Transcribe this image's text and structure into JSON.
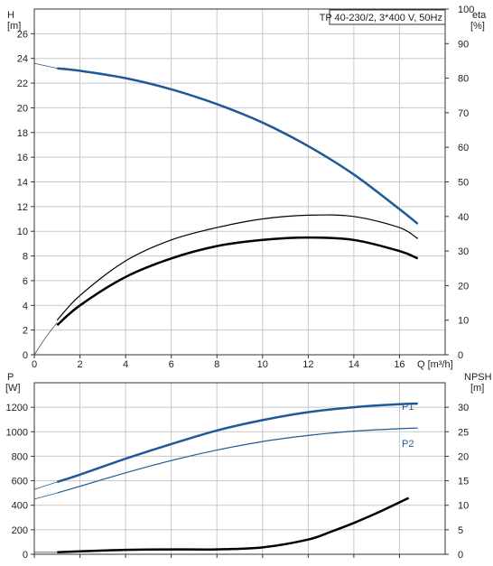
{
  "chart_data": [
    {
      "type": "line",
      "title": "TP 40-230/2, 3*400 V, 50Hz",
      "xlabel": "Q [m³/h]",
      "ylabel_left": "H",
      "ylabel_left_unit": "[m]",
      "ylabel_right": "eta",
      "ylabel_right_unit": "[%]",
      "xlim": [
        0,
        18
      ],
      "ylim_left": [
        0,
        28
      ],
      "ylim_right": [
        0,
        100
      ],
      "x_ticks": [
        0,
        2,
        4,
        6,
        8,
        10,
        12,
        14,
        16
      ],
      "y_ticks_left": [
        0,
        2,
        4,
        6,
        8,
        10,
        12,
        14,
        16,
        18,
        20,
        22,
        24,
        26
      ],
      "y_ticks_right": [
        0,
        10,
        20,
        30,
        40,
        50,
        60,
        70,
        80,
        90,
        100
      ],
      "grid": true,
      "series": [
        {
          "id": "head",
          "axis": "left",
          "color": "#1f5a96",
          "width": 2.5,
          "x": [
            1,
            2,
            4,
            6,
            8,
            10,
            12,
            14,
            16,
            16.8
          ],
          "y": [
            23.2,
            23.0,
            22.4,
            21.5,
            20.3,
            18.8,
            16.9,
            14.6,
            11.8,
            10.6
          ]
        },
        {
          "id": "head-extension",
          "axis": "left",
          "color": "#1f5a96",
          "width": 0.8,
          "x": [
            0,
            1
          ],
          "y": [
            23.6,
            23.2
          ]
        },
        {
          "id": "efficiency-thin",
          "axis": "left",
          "color": "#000000",
          "width": 1.2,
          "x": [
            1,
            2,
            4,
            6,
            8,
            10,
            12,
            14,
            16,
            16.8
          ],
          "y": [
            2.8,
            4.8,
            7.6,
            9.3,
            10.3,
            11.0,
            11.3,
            11.2,
            10.3,
            9.4
          ]
        },
        {
          "id": "efficiency-thick",
          "axis": "left",
          "color": "#000000",
          "width": 2.5,
          "x": [
            1,
            2,
            4,
            6,
            8,
            10,
            12,
            14,
            16,
            16.8
          ],
          "y": [
            2.4,
            4.0,
            6.3,
            7.8,
            8.8,
            9.3,
            9.5,
            9.3,
            8.4,
            7.8
          ]
        },
        {
          "id": "efficiency-extension",
          "axis": "left",
          "color": "#555555",
          "width": 0.8,
          "x": [
            0,
            0.5,
            1
          ],
          "y": [
            0,
            1.4,
            2.6
          ]
        }
      ]
    },
    {
      "type": "line",
      "ylabel_left": "P",
      "ylabel_left_unit": "[W]",
      "ylabel_right": "NPSH",
      "ylabel_right_unit": "[m]",
      "xlim": [
        0,
        18
      ],
      "ylim_left": [
        0,
        1400
      ],
      "ylim_right": [
        0,
        35
      ],
      "y_ticks_left": [
        0,
        200,
        400,
        600,
        800,
        1000,
        1200
      ],
      "y_ticks_right": [
        0,
        5,
        10,
        15,
        20,
        25,
        30
      ],
      "grid": true,
      "series": [
        {
          "id": "p1",
          "name": "P1",
          "axis": "left",
          "color": "#1f5a96",
          "width": 2.5,
          "x": [
            1,
            2,
            4,
            6,
            8,
            10,
            12,
            14,
            16,
            16.8
          ],
          "y": [
            590,
            650,
            780,
            900,
            1010,
            1095,
            1160,
            1200,
            1225,
            1230
          ]
        },
        {
          "id": "p1-extension",
          "axis": "left",
          "color": "#1f5a96",
          "width": 0.8,
          "x": [
            0,
            1
          ],
          "y": [
            530,
            590
          ]
        },
        {
          "id": "p2",
          "name": "P2",
          "axis": "left",
          "color": "#1f5a96",
          "width": 1.2,
          "x": [
            1,
            2,
            4,
            6,
            8,
            10,
            12,
            14,
            16,
            16.8
          ],
          "y": [
            500,
            555,
            665,
            765,
            850,
            920,
            970,
            1005,
            1025,
            1030
          ]
        },
        {
          "id": "p2-extension",
          "axis": "left",
          "color": "#1f5a96",
          "width": 0.8,
          "x": [
            0,
            1
          ],
          "y": [
            450,
            500
          ]
        },
        {
          "id": "npsh",
          "axis": "right",
          "color": "#000000",
          "width": 2.5,
          "x": [
            1,
            2,
            4,
            6,
            8,
            10,
            12,
            13,
            14,
            15,
            16.4
          ],
          "y": [
            0.4,
            0.6,
            0.9,
            1.0,
            1.0,
            1.4,
            3.0,
            4.6,
            6.4,
            8.4,
            11.5
          ]
        },
        {
          "id": "npsh-extension",
          "axis": "right",
          "color": "#555555",
          "width": 0.8,
          "x": [
            0,
            1
          ],
          "y": [
            0.4,
            0.4
          ]
        }
      ]
    }
  ]
}
